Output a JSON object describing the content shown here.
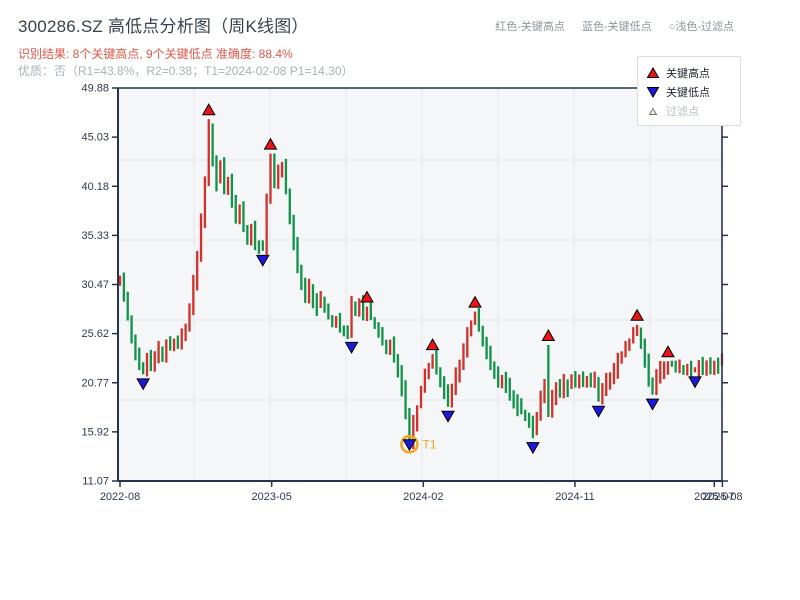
{
  "header": {
    "title": "300286.SZ 高低点分析图（周K线图）",
    "subtitle_result": "识别结果: 8个关键高点, 9个关键低点  准确度: 88.4%",
    "subtitle_quality": "优质：否（R1=43.8%，R2=0.38；T1=2024-02-08 P1=14.30）",
    "legend_top": {
      "high": "红色-关键高点",
      "low": "蓝色-关键低点",
      "filtered": "○浅色-过滤点"
    }
  },
  "legend_box": {
    "high": "关键高点",
    "low": "关键低点",
    "filtered": "过滤点"
  },
  "colors": {
    "candle_up": "#d3302b",
    "candle_down": "#109449",
    "marker_high": "#e81417",
    "marker_low": "#1d18e0",
    "marker_edge": "#000000",
    "filtered_fill": "#fbe3dd",
    "t1_accent": "#f5a623",
    "plot_bg": "#f5f6f8",
    "grid": "#e7e9ed",
    "axis": "#26334f",
    "tick_label": "#2e3950"
  },
  "chart_data": {
    "type": "candlestick",
    "symbol": "300286.SZ",
    "freq": "weekly",
    "title": "300286.SZ 高低点分析图（周K线图）",
    "y_axis": {
      "min": 11.07,
      "max": 49.88,
      "tick_labels": [
        "49.88",
        "45.03",
        "40.18",
        "35.33",
        "30.47",
        "25.62",
        "20.77",
        "15.92",
        "11.07"
      ]
    },
    "x_axis": {
      "tick_labels": [
        "2022-08",
        "2023-05",
        "2024-02",
        "2024-11",
        "2025-07",
        "2025-08"
      ],
      "tick_weeks": [
        0,
        39.3,
        78.6,
        117.9,
        154.0,
        156.1
      ]
    },
    "open_first": 30.5,
    "closes": [
      31.2,
      29.0,
      27.2,
      25.0,
      23.4,
      22.5,
      22.0,
      23.1,
      22.6,
      23.5,
      24.2,
      23.7,
      24.6,
      24.1,
      24.9,
      24.4,
      25.3,
      26.3,
      28.0,
      30.5,
      33.4,
      36.8,
      41.0,
      45.6,
      43.0,
      40.6,
      42.2,
      39.6,
      40.8,
      38.4,
      36.9,
      38.0,
      36.2,
      35.0,
      36.0,
      34.6,
      34.3,
      34.0,
      38.6,
      42.8,
      40.2,
      41.4,
      42.2,
      39.8,
      36.9,
      34.4,
      32.2,
      30.6,
      29.4,
      30.2,
      29.0,
      28.3,
      28.9,
      27.9,
      27.3,
      26.6,
      26.9,
      26.2,
      25.9,
      25.7,
      28.5,
      28.1,
      28.5,
      27.8,
      28.0,
      27.1,
      26.3,
      25.5,
      24.8,
      24.0,
      24.5,
      23.3,
      21.9,
      20.1,
      17.9,
      15.1,
      16.9,
      18.4,
      20.0,
      21.4,
      22.5,
      23.2,
      22.0,
      20.8,
      19.7,
      19.0,
      20.3,
      21.6,
      22.9,
      24.2,
      25.5,
      26.7,
      27.3,
      26.1,
      24.7,
      23.5,
      22.5,
      21.7,
      20.9,
      21.4,
      20.5,
      19.8,
      19.1,
      18.4,
      17.8,
      17.2,
      16.6,
      16.0,
      17.5,
      19.3,
      21.0,
      18.0,
      19.3,
      20.6,
      20.1,
      20.8,
      20.3,
      21.0,
      20.5,
      21.2,
      20.7,
      21.3,
      20.8,
      21.1,
      19.3,
      20.2,
      20.9,
      21.5,
      22.1,
      22.8,
      23.5,
      24.2,
      25.0,
      25.8,
      26.0,
      24.6,
      22.8,
      21.0,
      20.3,
      21.5,
      22.0,
      22.5,
      22.8,
      22.5,
      22.0,
      22.3,
      21.9,
      22.1,
      21.8,
      22.0,
      22.4,
      22.2,
      22.6,
      22.4,
      22.8,
      22.6,
      22.9
    ],
    "key_highs": [
      {
        "week": 23,
        "value": 46.8
      },
      {
        "week": 39,
        "value": 43.4
      },
      {
        "week": 64,
        "value": 28.3
      },
      {
        "week": 81,
        "value": 23.6
      },
      {
        "week": 92,
        "value": 27.8
      },
      {
        "week": 111,
        "value": 24.5
      },
      {
        "week": 134,
        "value": 26.5
      },
      {
        "week": 142,
        "value": 22.9
      }
    ],
    "key_lows": [
      {
        "week": 6,
        "value": 21.6
      },
      {
        "week": 37,
        "value": 33.8
      },
      {
        "week": 60,
        "value": 25.2
      },
      {
        "week": 75,
        "value": 14.3
      },
      {
        "week": 85,
        "value": 18.4
      },
      {
        "week": 107,
        "value": 15.3
      },
      {
        "week": 124,
        "value": 18.9
      },
      {
        "week": 138,
        "value": 19.6
      },
      {
        "week": 149,
        "value": 21.8
      }
    ],
    "t1": {
      "week": 75,
      "value": 14.3,
      "label": "T1"
    },
    "legend": [
      "关键高点",
      "关键低点",
      "过滤点"
    ],
    "stats": {
      "key_high_count": 8,
      "key_low_count": 9,
      "accuracy_pct": 88.4,
      "r1_pct": 43.8,
      "r2": 0.38,
      "t1_date": "2024-02-08",
      "p1": 14.3
    }
  }
}
